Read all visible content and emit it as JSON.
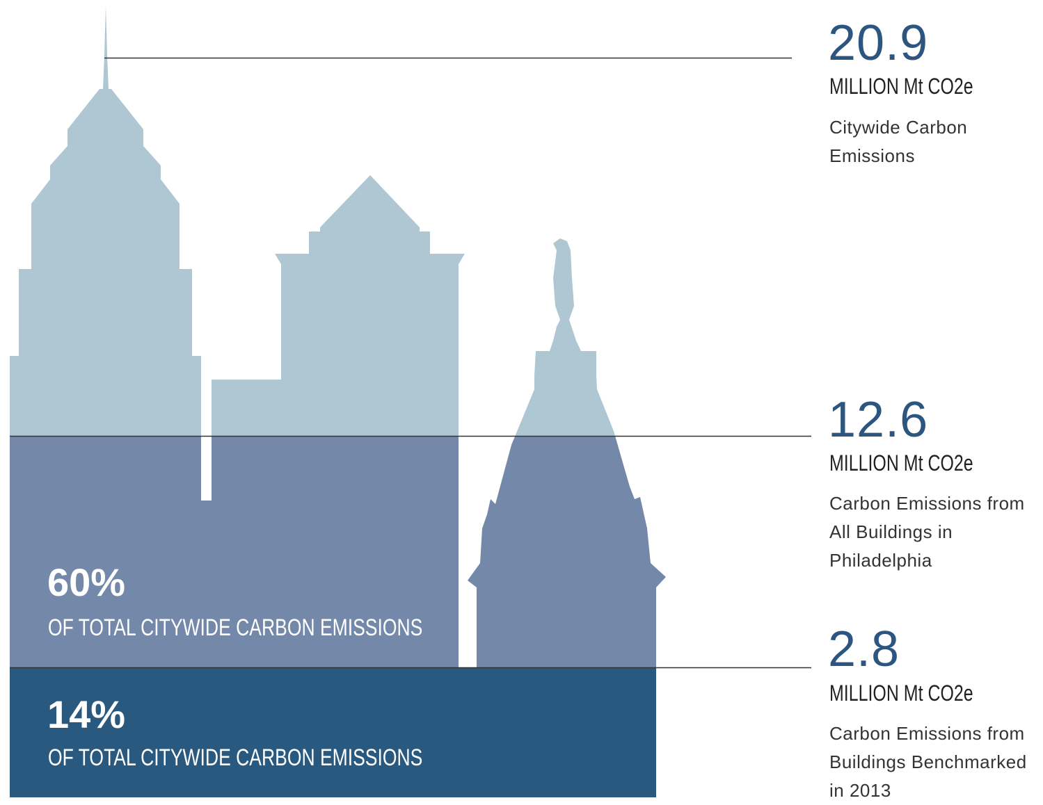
{
  "stats": [
    {
      "value": "20.9",
      "unit": "MILLION Mt CO2e",
      "description": "Citywide Carbon Emissions"
    },
    {
      "value": "12.6",
      "unit": "MILLION Mt CO2e",
      "description": "Carbon Emissions from All Buildings in Philadelphia"
    },
    {
      "value": "2.8",
      "unit": "MILLION Mt CO2e",
      "description": "Carbon Emissions from Buildings Benchmarked in 2013"
    }
  ],
  "bands": [
    {
      "percent": "60%",
      "label": "OF TOTAL CITYWIDE CARBON EMISSIONS"
    },
    {
      "percent": "14%",
      "label": "OF TOTAL CITYWIDE CARBON EMISSIONS"
    }
  ]
}
